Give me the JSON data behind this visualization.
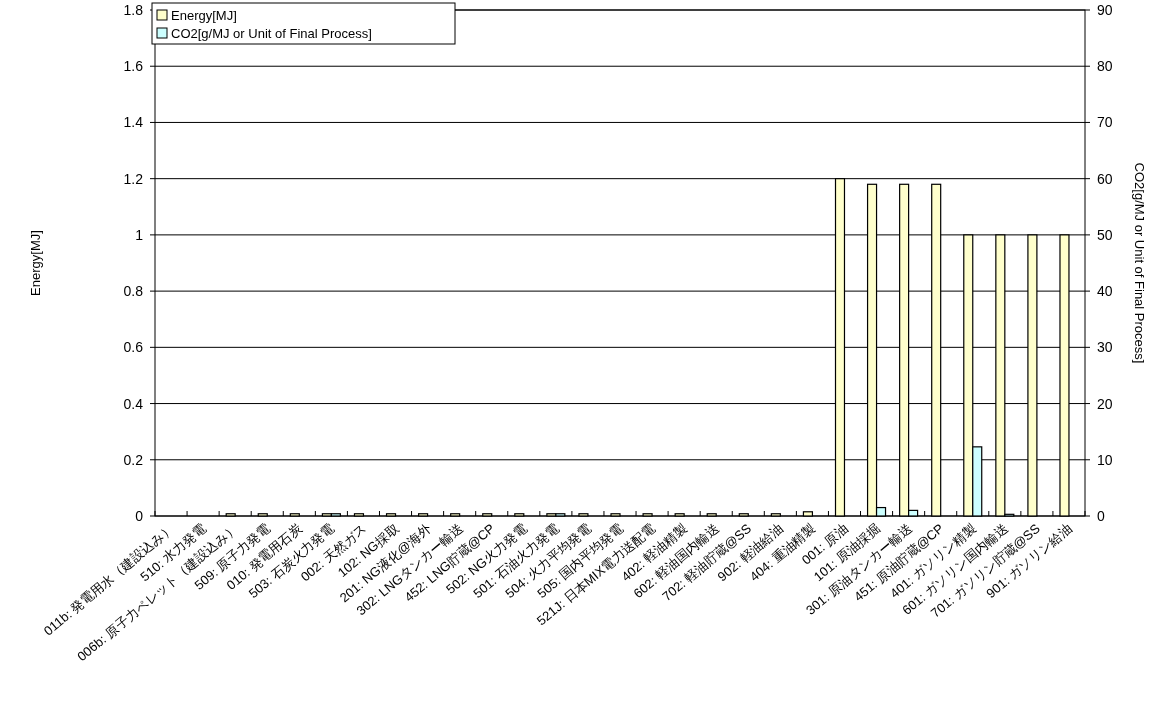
{
  "chart_data": {
    "type": "bar",
    "ylabel": "Energy[MJ]",
    "y2label": "CO2[g/MJ or Unit of Final Process]",
    "categories": [
      "011b: 発電用水（建設込み）",
      "510: 水力発電",
      "006b: 原子力ペレット（建設込み）",
      "509: 原子力発電",
      "010: 発電用石炭",
      "503: 石炭火力発電",
      "002: 天然ガス",
      "102: NG採取",
      "201: NG液化@海外",
      "302: LNGタンカー輸送",
      "452: LNG貯蔵@CP",
      "502: NG火力発電",
      "501: 石油火力発電",
      "504: 火力平均発電",
      "505: 国内平均発電",
      "521J: 日本MIX電力送配電",
      "402: 軽油精製",
      "602: 軽油国内輸送",
      "702: 軽油貯蔵@SS",
      "902: 軽油給油",
      "404: 重油精製",
      "001: 原油",
      "101: 原油採掘",
      "301: 原油タンカー輸送",
      "451: 原油貯蔵@CP",
      "401: ガソリン精製",
      "601: ガソリン国内輸送",
      "701: ガソリン貯蔵@SS",
      "901: ガソリン給油"
    ],
    "series": [
      {
        "name": "Energy[MJ]",
        "color": "#ffffcc",
        "values": [
          0,
          0,
          0.008,
          0.008,
          0.008,
          0.008,
          0.008,
          0.008,
          0.008,
          0.008,
          0.008,
          0.008,
          0.008,
          0.008,
          0.008,
          0.008,
          0.008,
          0.008,
          0.008,
          0.008,
          0.015,
          1.2,
          1.18,
          1.18,
          1.18,
          1.0,
          1.0,
          1.0,
          1.0
        ]
      },
      {
        "name": "CO2[g/MJ or Unit of Final Process]",
        "color": "#ccffff",
        "axis": "y2",
        "values": [
          0,
          0,
          0,
          0,
          0,
          0.4,
          0,
          0,
          0,
          0,
          0,
          0,
          0.4,
          0,
          0,
          0,
          0,
          0,
          0,
          0,
          0,
          0,
          1.5,
          1.0,
          0,
          12.3,
          0.3,
          0,
          0
        ]
      }
    ],
    "ylim": [
      0,
      1.8
    ],
    "yticks": [
      0,
      0.2,
      0.4,
      0.6,
      0.8,
      1,
      1.2,
      1.4,
      1.6,
      1.8
    ],
    "y2lim": [
      0,
      90
    ],
    "y2ticks": [
      0,
      10,
      20,
      30,
      40,
      50,
      60,
      70,
      80,
      90
    ],
    "grid": "y",
    "legend": "top left"
  }
}
